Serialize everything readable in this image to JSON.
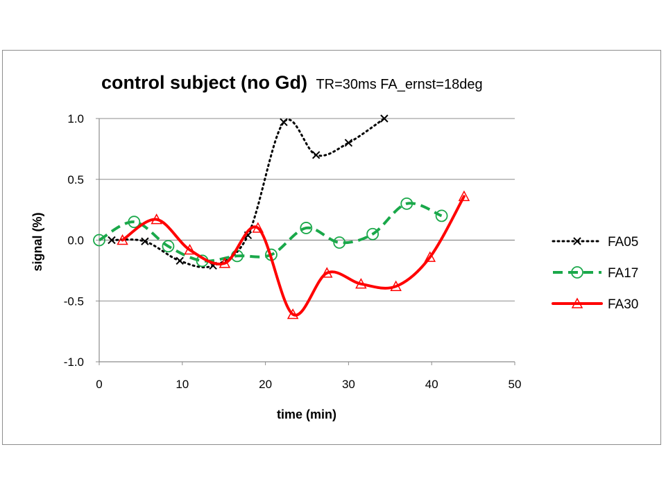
{
  "chart_data": {
    "type": "line",
    "title": "control subject (no Gd)",
    "subtitle": "TR=30ms FA_ernst=18deg",
    "xlabel": "time (min)",
    "ylabel": "signal (%)",
    "xlim": [
      0,
      50
    ],
    "ylim": [
      -1.0,
      1.0
    ],
    "xticks": [
      0,
      10,
      20,
      30,
      40,
      50
    ],
    "yticks": [
      1.0,
      0.5,
      0.0,
      -0.5,
      -1.0
    ],
    "ytick_labels": [
      "1.0",
      "0.5",
      "0.0",
      "-0.5",
      "-1.0"
    ],
    "grid": "horizontal",
    "legend_position": "right",
    "series": [
      {
        "name": "FA05",
        "color": "#000000",
        "line_style": "dotted",
        "marker": "x",
        "x": [
          1.5,
          5.5,
          9.7,
          13.7,
          17.9,
          22.2,
          26.1,
          30.0,
          34.3
        ],
        "y": [
          0.0,
          -0.01,
          -0.17,
          -0.21,
          0.04,
          0.97,
          0.7,
          0.8,
          1.0
        ]
      },
      {
        "name": "FA17",
        "color": "#1aa84a",
        "line_style": "dashed",
        "marker": "circle",
        "x": [
          0.0,
          4.2,
          8.3,
          12.4,
          16.6,
          20.7,
          24.9,
          28.9,
          32.9,
          37.0,
          41.2
        ],
        "y": [
          0.0,
          0.15,
          -0.05,
          -0.17,
          -0.13,
          -0.12,
          0.1,
          -0.02,
          0.05,
          0.3,
          0.2
        ]
      },
      {
        "name": "FA30",
        "color": "#ff0000",
        "line_style": "solid",
        "marker": "triangle",
        "x": [
          2.8,
          6.9,
          10.9,
          15.1,
          19.1,
          23.3,
          27.4,
          31.5,
          35.7,
          39.8,
          43.9
        ],
        "y": [
          0.0,
          0.17,
          -0.08,
          -0.19,
          0.1,
          -0.61,
          -0.27,
          -0.36,
          -0.38,
          -0.14,
          0.36
        ]
      }
    ]
  }
}
